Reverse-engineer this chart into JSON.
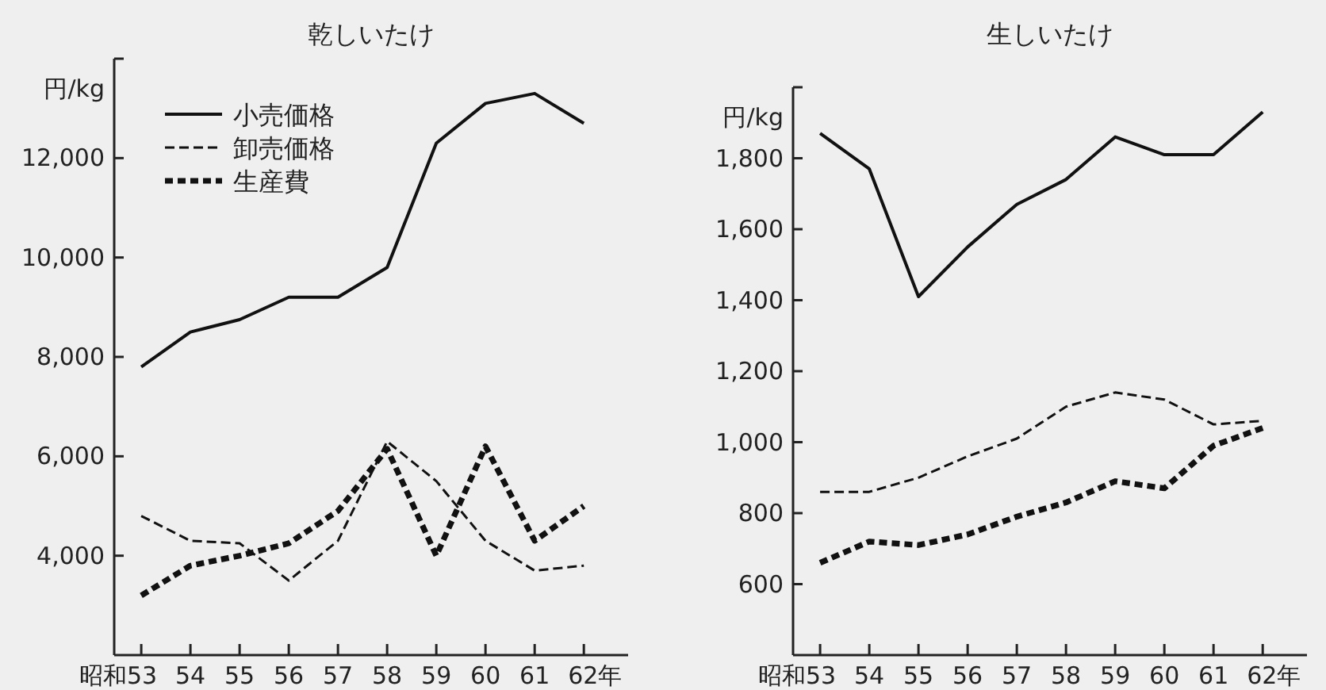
{
  "chart_data": [
    {
      "type": "line",
      "title": "乾しいたけ",
      "ylabel": "円/kg",
      "categories": [
        "昭和53",
        "54",
        "55",
        "56",
        "57",
        "58",
        "59",
        "60",
        "61",
        "62年"
      ],
      "ylim": [
        2000,
        14000
      ],
      "yticks": [
        {
          "value": 4000,
          "label": "4,000"
        },
        {
          "value": 6000,
          "label": "6,000"
        },
        {
          "value": 8000,
          "label": "8,000"
        },
        {
          "value": 10000,
          "label": "10,000"
        },
        {
          "value": 12000,
          "label": "12,000"
        },
        {
          "value": 14000,
          "label": null
        }
      ],
      "grid": false,
      "legend": "top left",
      "marker": "none",
      "series": [
        {
          "name": "小売価格",
          "color": "#111111",
          "line_style": "solid",
          "values": [
            7800,
            8500,
            8750,
            9200,
            9200,
            9800,
            12300,
            13100,
            13300,
            12700
          ]
        },
        {
          "name": "卸売価格",
          "color": "#111111",
          "line_style": "dashed",
          "values": [
            4800,
            4300,
            4250,
            3500,
            4300,
            6300,
            5500,
            4300,
            3700,
            3800
          ]
        },
        {
          "name": "生産費",
          "color": "#111111",
          "line_style": "dotted",
          "values": [
            3200,
            3800,
            4000,
            4250,
            4900,
            6150,
            4000,
            6200,
            4300,
            5000
          ]
        }
      ]
    },
    {
      "type": "line",
      "title": "生しいたけ",
      "ylabel": "円/kg",
      "categories": [
        "昭和53",
        "54",
        "55",
        "56",
        "57",
        "58",
        "59",
        "60",
        "61",
        "62年"
      ],
      "ylim": [
        400,
        2000
      ],
      "yticks": [
        600,
        800,
        {
          "value": 1000,
          "label": "1,000"
        },
        {
          "value": 1200,
          "label": "1,200"
        },
        {
          "value": 1400,
          "label": "1,400"
        },
        {
          "value": 1600,
          "label": "1,600"
        },
        {
          "value": 1800,
          "label": "1,800"
        },
        {
          "value": 2000,
          "label": null
        }
      ],
      "grid": false,
      "legend": false,
      "marker": "none",
      "series": [
        {
          "color": "#111111",
          "line_style": "solid",
          "values": [
            1870,
            1770,
            1410,
            1550,
            1670,
            1740,
            1860,
            1810,
            1810,
            1930
          ]
        },
        {
          "color": "#111111",
          "line_style": "dashed",
          "values": [
            860,
            860,
            900,
            960,
            1010,
            1100,
            1140,
            1120,
            1050,
            1060
          ]
        },
        {
          "color": "#111111",
          "line_style": "dotted",
          "values": [
            660,
            720,
            710,
            740,
            790,
            830,
            890,
            870,
            990,
            1040
          ]
        }
      ]
    }
  ]
}
